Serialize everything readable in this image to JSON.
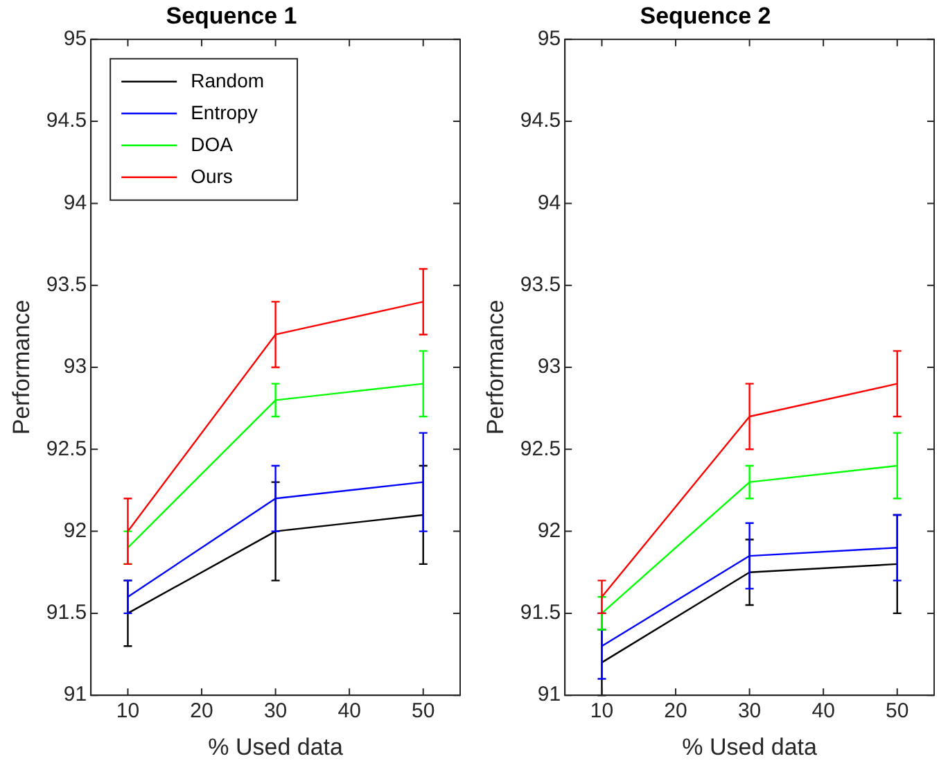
{
  "chart_data": [
    {
      "type": "line",
      "title": "Sequence 1",
      "xlabel": "% Used data",
      "ylabel": "Performance",
      "x": [
        10,
        30,
        50
      ],
      "xlim": [
        5,
        55
      ],
      "xticks": [
        10,
        20,
        30,
        40,
        50
      ],
      "ylim": [
        91,
        95
      ],
      "yticks": [
        91,
        91.5,
        92,
        92.5,
        93,
        93.5,
        94,
        94.5,
        95
      ],
      "legend": "top left",
      "marker": "none",
      "grid": false,
      "series": [
        {
          "name": "Random",
          "color": "#000000",
          "values": [
            91.5,
            92.0,
            92.1
          ],
          "errors": [
            0.2,
            0.3,
            0.3
          ]
        },
        {
          "name": "Entropy",
          "color": "#0000ff",
          "values": [
            91.6,
            92.2,
            92.3
          ],
          "errors": [
            0.1,
            0.2,
            0.3
          ]
        },
        {
          "name": "DOA",
          "color": "#00ff00",
          "values": [
            91.9,
            92.8,
            92.9
          ],
          "errors": [
            0.1,
            0.1,
            0.2
          ]
        },
        {
          "name": "Ours",
          "color": "#ff0000",
          "values": [
            92.0,
            93.2,
            93.4
          ],
          "errors": [
            0.2,
            0.2,
            0.2
          ]
        }
      ]
    },
    {
      "type": "line",
      "title": "Sequence 2",
      "xlabel": "% Used data",
      "ylabel": "Performance",
      "x": [
        10,
        30,
        50
      ],
      "xlim": [
        5,
        55
      ],
      "xticks": [
        10,
        20,
        30,
        40,
        50
      ],
      "ylim": [
        91,
        95
      ],
      "yticks": [
        91,
        91.5,
        92,
        92.5,
        93,
        93.5,
        94,
        94.5,
        95
      ],
      "legend": false,
      "marker": "none",
      "grid": false,
      "series": [
        {
          "color": "#000000",
          "values": [
            91.2,
            91.75,
            91.8
          ],
          "errors": [
            0.2,
            0.2,
            0.3
          ]
        },
        {
          "color": "#0000ff",
          "values": [
            91.3,
            91.85,
            91.9
          ],
          "errors": [
            0.2,
            0.2,
            0.2
          ]
        },
        {
          "color": "#00ff00",
          "values": [
            91.5,
            92.3,
            92.4
          ],
          "errors": [
            0.1,
            0.1,
            0.2
          ]
        },
        {
          "color": "#ff0000",
          "values": [
            91.6,
            92.7,
            92.9
          ],
          "errors": [
            0.1,
            0.2,
            0.2
          ]
        }
      ]
    }
  ]
}
